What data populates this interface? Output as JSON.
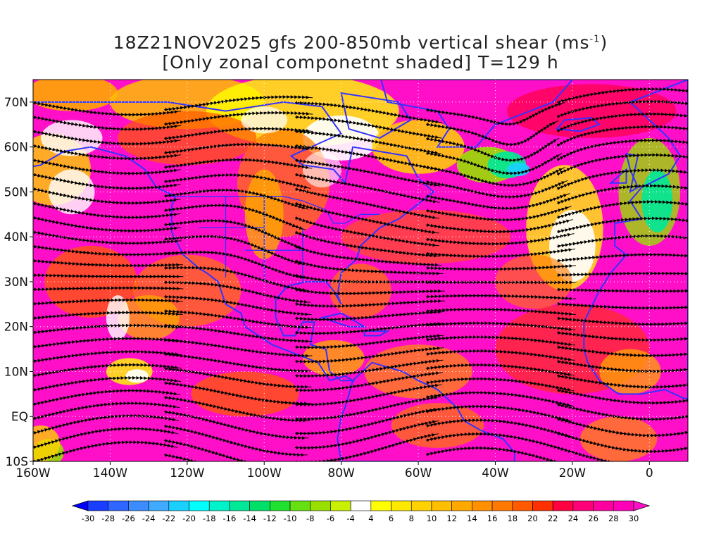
{
  "title": {
    "line1_main": "18Z21NOV2025 gfs 200-850mb vertical shear (ms",
    "line1_sup": "-1",
    "line1_end": ")",
    "line2": "[Only zonal componetnt shaded] T=129 h"
  },
  "map": {
    "lat_labels": [
      "70N",
      "60N",
      "50N",
      "40N",
      "30N",
      "20N",
      "10N",
      "EQ",
      "10S"
    ],
    "lon_labels": [
      "160W",
      "140W",
      "120W",
      "100W",
      "80W",
      "60W",
      "40W",
      "20W",
      "0"
    ],
    "lat_range": [
      -10,
      75
    ],
    "lon_range": [
      -160,
      10
    ]
  },
  "colorbar": {
    "labels": [
      "-30",
      "-28",
      "-26",
      "-24",
      "-22",
      "-20",
      "-18",
      "-16",
      "-14",
      "-12",
      "-10",
      "-8",
      "-6",
      "-4",
      "4",
      "6",
      "8",
      "10",
      "12",
      "14",
      "16",
      "18",
      "20",
      "22",
      "24",
      "26",
      "28",
      "30"
    ],
    "colors": [
      "#0000ff",
      "#1a3dff",
      "#2e66ff",
      "#3a8cff",
      "#40aaff",
      "#1ad0ff",
      "#00ffff",
      "#00f2c8",
      "#00e898",
      "#00e068",
      "#20e030",
      "#66e010",
      "#99e000",
      "#c8f000",
      "#ffffff",
      "#ffff00",
      "#ffe800",
      "#ffd200",
      "#ffbe00",
      "#ffa800",
      "#ff9000",
      "#ff7800",
      "#ff5a00",
      "#ff3000",
      "#ff0040",
      "#ff007a",
      "#ff00a0",
      "#ff00b8",
      "#ff10c8"
    ]
  },
  "colors": {
    "coast": "#3333ff",
    "stream": "#000000",
    "contour": "#8a00c8"
  }
}
